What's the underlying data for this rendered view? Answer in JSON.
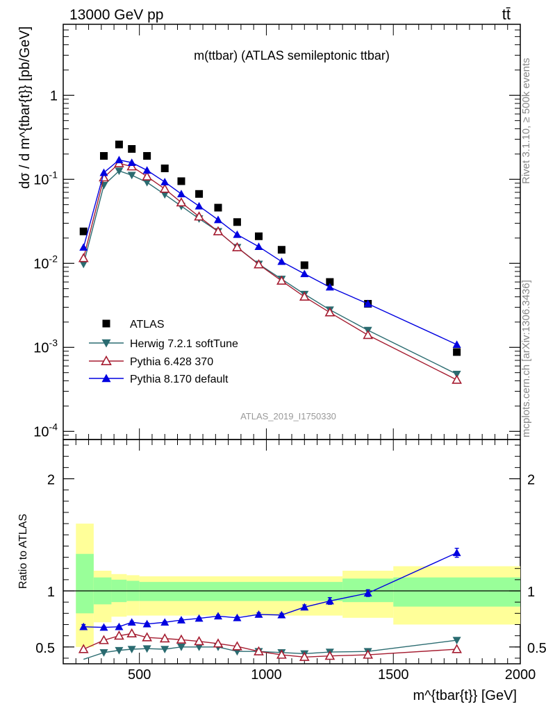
{
  "header": {
    "energy_label": "13000 GeV pp",
    "process_label": "tt̄"
  },
  "side_labels": {
    "rivet": "Rivet 3.1.10, ≥ 500k events",
    "mcplots": "mcplots.cern.ch [arXiv:1306.3436]"
  },
  "chart_data": [
    {
      "type": "scatter",
      "title": "m(ttbar) (ATLAS semileptonic ttbar)",
      "analysis_label": "ATLAS_2019_I1750330",
      "ylabel": "dσ / d m^{tbar{t}} [pb/GeV]",
      "xlabel": "m^{tbar{t}} [GeV]",
      "yscale": "log",
      "xlim": [
        200,
        2000
      ],
      "ylim": [
        8e-05,
        7
      ],
      "yticks": [
        {
          "v": 0.0001,
          "label": "10^-4"
        },
        {
          "v": 0.001,
          "label": "10^-3"
        },
        {
          "v": 0.01,
          "label": "10^-2"
        },
        {
          "v": 0.1,
          "label": "10^-1"
        },
        {
          "v": 1,
          "label": "1"
        }
      ],
      "x": [
        280,
        360,
        420,
        470,
        530,
        600,
        665,
        735,
        810,
        885,
        970,
        1060,
        1150,
        1250,
        1400,
        1750
      ],
      "series": [
        {
          "name": "ATLAS",
          "marker": "square",
          "color": "#000000",
          "line": false,
          "values": [
            0.024,
            0.19,
            0.26,
            0.23,
            0.19,
            0.135,
            0.095,
            0.067,
            0.046,
            0.031,
            0.021,
            0.0145,
            0.0095,
            0.006,
            0.0033,
            0.00088
          ]
        },
        {
          "name": "Herwig 7.2.1 softTune",
          "marker": "triangle-down",
          "color": "#2a6b70",
          "line": true,
          "values": [
            0.0098,
            0.085,
            0.126,
            0.112,
            0.092,
            0.066,
            0.048,
            0.034,
            0.024,
            0.0155,
            0.0098,
            0.0065,
            0.0043,
            0.0028,
            0.0016,
            0.00048
          ]
        },
        {
          "name": "Pythia 6.428 370",
          "marker": "triangle-up-open",
          "color": "#a51c30",
          "line": true,
          "values": [
            0.0115,
            0.105,
            0.155,
            0.142,
            0.108,
            0.077,
            0.053,
            0.036,
            0.024,
            0.0155,
            0.0097,
            0.0062,
            0.004,
            0.0026,
            0.0014,
            0.00041
          ]
        },
        {
          "name": "Pythia 8.170 default",
          "marker": "triangle-up",
          "color": "#0000e0",
          "line": true,
          "values": [
            0.0155,
            0.12,
            0.17,
            0.158,
            0.128,
            0.093,
            0.067,
            0.048,
            0.033,
            0.022,
            0.0158,
            0.0105,
            0.0075,
            0.0052,
            0.0033,
            0.00108
          ]
        }
      ]
    },
    {
      "type": "scatter",
      "ylabel": "Ratio to ATLAS",
      "yscale": "linear",
      "xlim": [
        200,
        2000
      ],
      "ylim": [
        0.35,
        2.35
      ],
      "yticks": [
        {
          "v": 0.5,
          "label": "0.5"
        },
        {
          "v": 1,
          "label": "1"
        },
        {
          "v": 2,
          "label": "2"
        }
      ],
      "xticks": [
        {
          "v": 500,
          "label": "500"
        },
        {
          "v": 1000,
          "label": "1000"
        },
        {
          "v": 1500,
          "label": "1500"
        },
        {
          "v": 2000,
          "label": "2000"
        }
      ],
      "bands": [
        {
          "x0": 250,
          "x1": 320,
          "outer": [
            0.5,
            1.6
          ],
          "inner": [
            0.8,
            1.33
          ]
        },
        {
          "x0": 320,
          "x1": 390,
          "outer": [
            0.72,
            1.18
          ],
          "inner": [
            0.88,
            1.12
          ]
        },
        {
          "x0": 390,
          "x1": 450,
          "outer": [
            0.77,
            1.15
          ],
          "inner": [
            0.9,
            1.1
          ]
        },
        {
          "x0": 450,
          "x1": 500,
          "outer": [
            0.78,
            1.14
          ],
          "inner": [
            0.91,
            1.09
          ]
        },
        {
          "x0": 500,
          "x1": 1300,
          "outer": [
            0.78,
            1.13
          ],
          "inner": [
            0.91,
            1.08
          ]
        },
        {
          "x0": 1300,
          "x1": 1500,
          "outer": [
            0.76,
            1.18
          ],
          "inner": [
            0.9,
            1.11
          ]
        },
        {
          "x0": 1500,
          "x1": 2000,
          "outer": [
            0.7,
            1.22
          ],
          "inner": [
            0.86,
            1.12
          ]
        }
      ],
      "x": [
        280,
        360,
        420,
        470,
        530,
        600,
        665,
        735,
        810,
        885,
        970,
        1060,
        1150,
        1250,
        1400,
        1750
      ],
      "series": [
        {
          "name": "Herwig 7.2.1 softTune",
          "marker": "triangle-down",
          "color": "#2a6b70",
          "values": [
            0.39,
            0.45,
            0.47,
            0.48,
            0.485,
            0.48,
            0.5,
            0.5,
            0.5,
            0.46,
            0.46,
            0.45,
            0.44,
            0.455,
            0.46,
            0.56
          ]
        },
        {
          "name": "Pythia 6.428 370",
          "marker": "triangle-up-open",
          "color": "#a51c30",
          "values": [
            0.48,
            0.56,
            0.6,
            0.62,
            0.585,
            0.575,
            0.565,
            0.55,
            0.53,
            0.505,
            0.46,
            0.43,
            0.41,
            0.42,
            0.43,
            0.48
          ]
        },
        {
          "name": "Pythia 8.170 default",
          "marker": "triangle-up",
          "color": "#0000e0",
          "values": [
            0.68,
            0.675,
            0.68,
            0.72,
            0.705,
            0.72,
            0.74,
            0.755,
            0.775,
            0.76,
            0.79,
            0.785,
            0.855,
            0.91,
            0.98,
            1.34
          ],
          "errors": [
            0.02,
            0.01,
            0.01,
            0.01,
            0.01,
            0.01,
            0.01,
            0.01,
            0.01,
            0.01,
            0.015,
            0.015,
            0.02,
            0.03,
            0.03,
            0.04
          ]
        }
      ]
    }
  ]
}
